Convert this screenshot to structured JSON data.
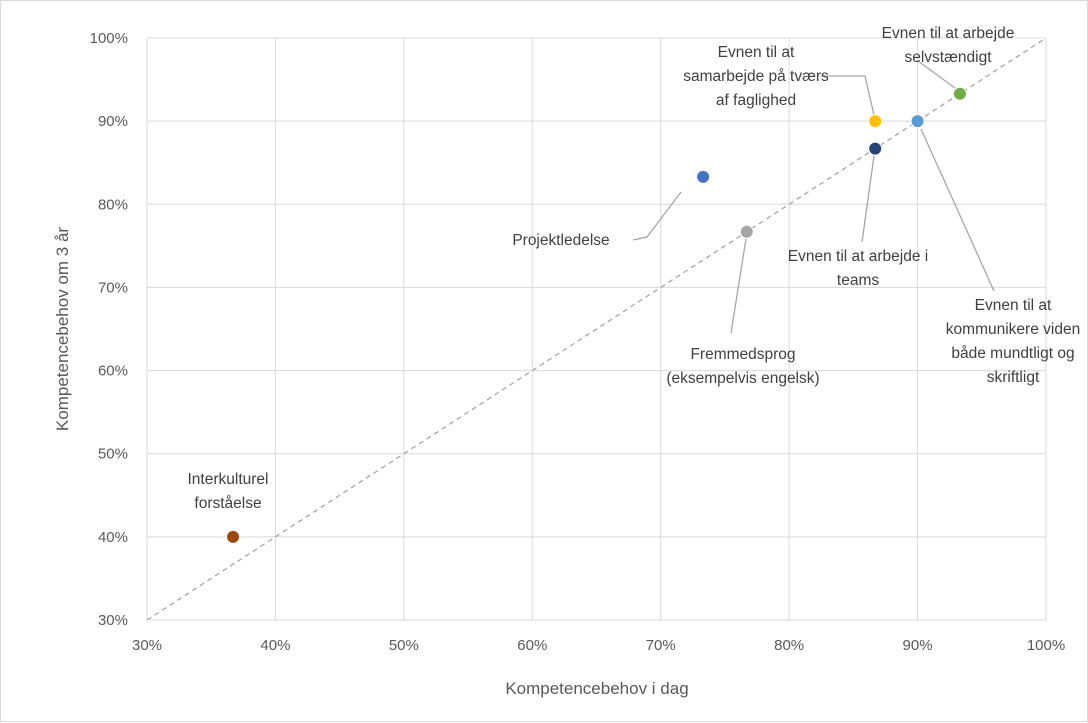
{
  "chart_data": {
    "type": "scatter",
    "title": "",
    "xlabel": "Kompetencebehov i dag",
    "ylabel": "Kompetencebehov om 3 år",
    "xlim": [
      30,
      100
    ],
    "ylim": [
      30,
      100
    ],
    "x_ticks": [
      "30%",
      "40%",
      "50%",
      "60%",
      "70%",
      "80%",
      "90%",
      "100%"
    ],
    "y_ticks": [
      "30%",
      "40%",
      "50%",
      "60%",
      "70%",
      "80%",
      "90%",
      "100%"
    ],
    "grid": true,
    "diagonal_reference_line": true,
    "legend": "none",
    "points": [
      {
        "label": [
          "Interkulturel",
          "forståelse"
        ],
        "x": 36.7,
        "y": 40.0,
        "color": "#9e480e"
      },
      {
        "label": [
          "Projektledelse"
        ],
        "x": 73.3,
        "y": 83.3,
        "color": "#4472c4"
      },
      {
        "label": [
          "Fremmedsprog",
          "(eksempelvis engelsk)"
        ],
        "x": 76.7,
        "y": 76.7,
        "color": "#a5a5a5"
      },
      {
        "label": [
          "Evnen til at",
          "samarbejde på tværs",
          "af faglighed"
        ],
        "x": 86.7,
        "y": 90.0,
        "color": "#ffc000"
      },
      {
        "label": [
          "Evnen til at arbejde i",
          "teams"
        ],
        "x": 86.7,
        "y": 86.7,
        "color": "#264478"
      },
      {
        "label": [
          "Evnen til at",
          "kommunikere viden",
          "både mundtligt og",
          "skriftligt"
        ],
        "x": 90.0,
        "y": 90.0,
        "color": "#5b9bd5"
      },
      {
        "label": [
          "Evnen til at arbejde",
          "selvstændigt"
        ],
        "x": 93.3,
        "y": 93.3,
        "color": "#70ad47"
      }
    ]
  }
}
